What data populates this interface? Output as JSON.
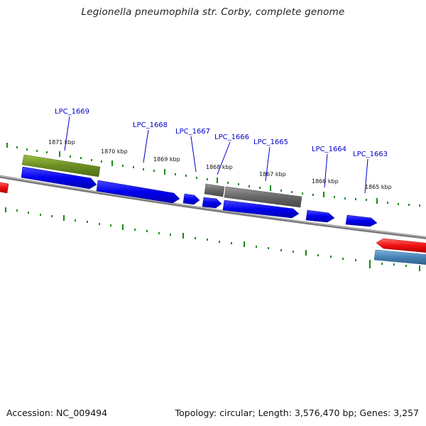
{
  "title": "Legionella pneumophila str. Corby, complete genome",
  "footer": {
    "accession": "Accession: NC_009494",
    "summary": "Topology: circular; Length: 3,576,470 bp; Genes: 3,257"
  },
  "map": {
    "colors": {
      "backbone": "#7a7a7a",
      "ticks": "#1a8a1a",
      "forward_gene": "#0000ee",
      "gray_gene": "#666666",
      "olive_gene": "#6b8e23",
      "red_gene": "#ee1111",
      "steelblue_gene": "#4682b4",
      "gene_label": "#0000cc"
    },
    "position_labels": [
      "1871 kbp",
      "1870 kbp",
      "1869 kbp",
      "1868 kbp",
      "1867 kbp",
      "1866 kbp",
      "1865 kbp"
    ],
    "gene_labels": [
      "LPC_1669",
      "LPC_1668",
      "LPC_1667",
      "LPC_1666",
      "LPC_1665",
      "LPC_1664",
      "LPC_1663"
    ]
  }
}
